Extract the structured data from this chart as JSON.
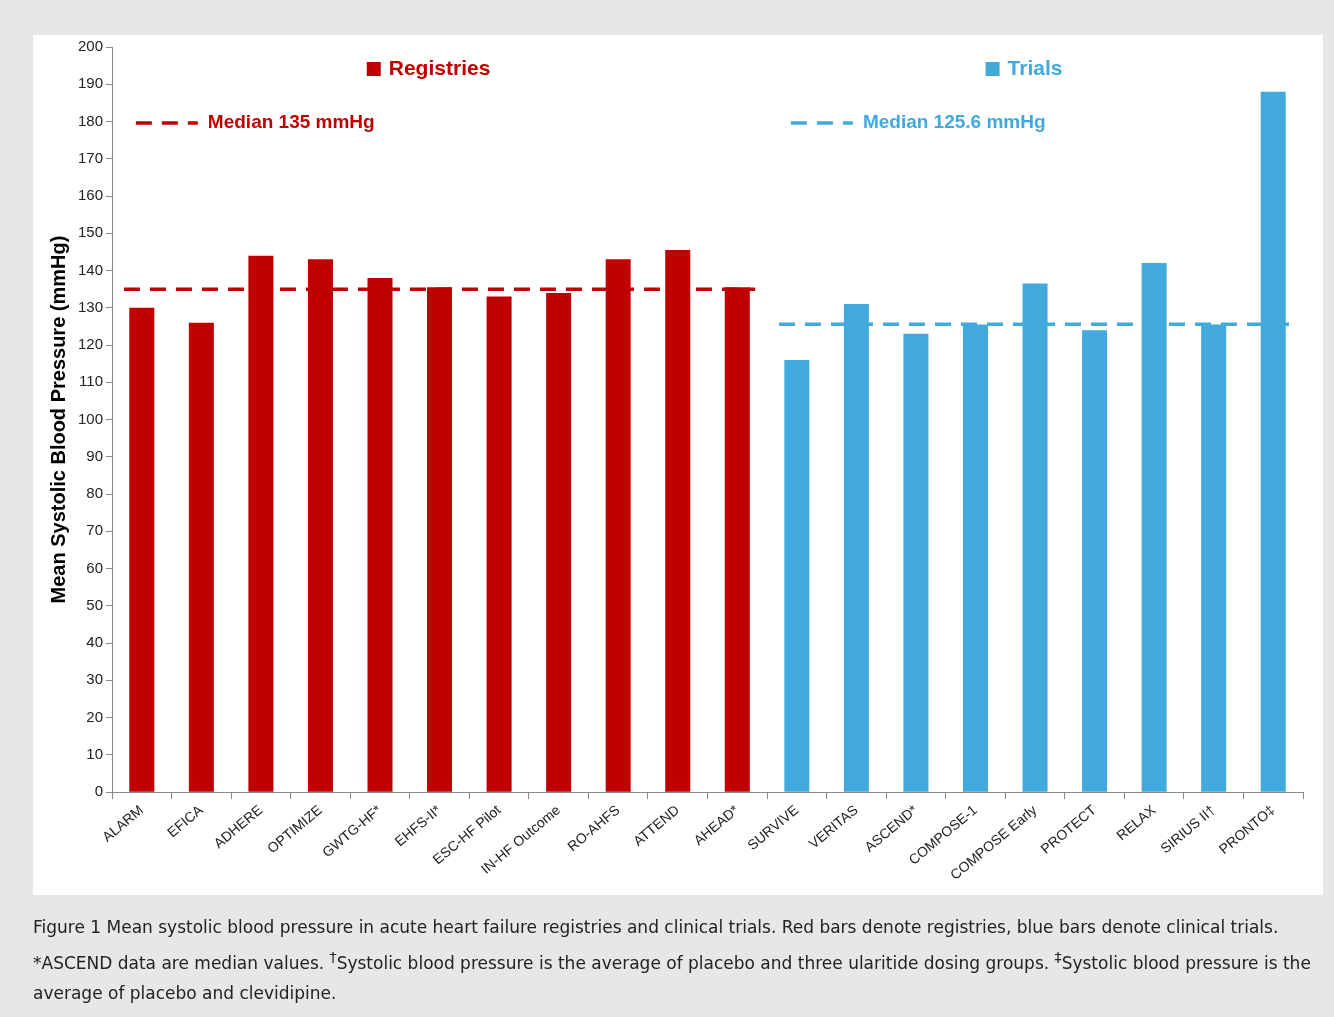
{
  "chart_data": {
    "type": "bar",
    "ylabel": "Mean Systolic Blood Pressure (mmHg)",
    "categories": [
      "ALARM",
      "EFICA",
      "ADHERE",
      "OPTIMIZE",
      "GWTG-HF*",
      "EHFS-II*",
      "ESC-HF Pilot",
      "IN-HF Outcome",
      "RO-AHFS",
      "ATTEND",
      "AHEAD*",
      "SURVIVE",
      "VERITAS",
      "ASCEND*",
      "COMPOSE-1",
      "COMPOSE Early",
      "PROTECT",
      "RELAX",
      "SIRIUS II†",
      "PRONTO‡"
    ],
    "series": [
      {
        "name": "Registries",
        "color": "#c00000",
        "values": [
          130,
          126,
          144,
          143,
          138,
          135.5,
          133,
          134,
          143,
          145.5,
          135.5,
          null,
          null,
          null,
          null,
          null,
          null,
          null,
          null,
          null
        ]
      },
      {
        "name": "Trials",
        "color": "#41a9dc",
        "values": [
          null,
          null,
          null,
          null,
          null,
          null,
          null,
          null,
          null,
          null,
          null,
          116,
          131,
          123,
          125.5,
          136.5,
          124,
          142,
          125.5,
          188
        ]
      }
    ],
    "ylim": [
      0,
      200
    ],
    "yticks": [
      0,
      10,
      20,
      30,
      40,
      50,
      60,
      70,
      80,
      90,
      100,
      110,
      120,
      130,
      140,
      150,
      160,
      170,
      180,
      190,
      200
    ],
    "grid": false,
    "legend": "top",
    "ref_lines": [
      {
        "axis": "y",
        "value": 135,
        "label": "Median 135 mmHg",
        "color": "#c00000",
        "line_style": "dashed"
      },
      {
        "axis": "y",
        "value": 125.6,
        "label": "Median 125.6 mmHg",
        "color": "#41a9dc",
        "line_style": "dashed"
      }
    ],
    "annotations": [
      "Figure 1  Mean systolic blood pressure in acute heart failure registries and clinical trials. Red bars denote registries, blue bars denote clinical trials. *ASCEND data are median values. $^{†}$Systolic blood pressure is the average of placebo and three ularitide dosing groups. $^{‡}$Systolic blood pressure is the average of placebo and clevidipine."
    ]
  }
}
